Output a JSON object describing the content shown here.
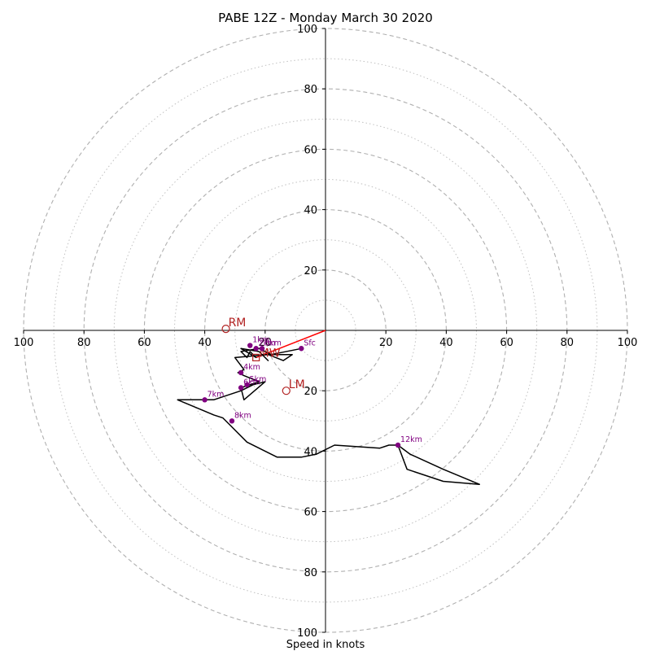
{
  "chart_data": {
    "type": "hodograph",
    "title": "PABE 12Z - Monday March 30 2020",
    "xlabel": "Speed in knots",
    "axis_range": [
      -100,
      100
    ],
    "ring_labels": [
      "20",
      "40",
      "60",
      "80",
      "100"
    ],
    "x_tick_labels": [
      "100",
      "80",
      "60",
      "40",
      "20",
      "20",
      "40",
      "60",
      "80",
      "100"
    ],
    "y_tick_labels": [
      "100",
      "80",
      "60",
      "40",
      "20",
      "20",
      "40",
      "60",
      "80",
      "100"
    ],
    "major_rings": [
      20,
      40,
      60,
      80,
      100
    ],
    "minor_rings": [
      10,
      30,
      50,
      70,
      90
    ],
    "colors": {
      "grid": "#b0b0b0",
      "trace": "#000000",
      "markers": "#800080",
      "motion": "#b22222",
      "shear": "#ff0000"
    },
    "trace": [
      [
        -8,
        -6
      ],
      [
        -18,
        -8
      ],
      [
        -22,
        -6
      ],
      [
        -28,
        -7
      ],
      [
        -26,
        -9
      ],
      [
        -25,
        -7
      ],
      [
        -23,
        -9
      ],
      [
        -28,
        -6
      ],
      [
        -22,
        -7
      ],
      [
        -19,
        -10
      ],
      [
        -21,
        -8
      ],
      [
        -11,
        -8
      ],
      [
        -14,
        -10
      ],
      [
        -19,
        -8
      ],
      [
        -30,
        -9
      ],
      [
        -27,
        -13
      ],
      [
        -29,
        -14
      ],
      [
        -27,
        -15
      ],
      [
        -22,
        -17
      ],
      [
        -28,
        -19
      ],
      [
        -27,
        -23
      ],
      [
        -20,
        -17
      ],
      [
        -24,
        -18
      ],
      [
        -28,
        -20
      ],
      [
        -34,
        -22
      ],
      [
        -37,
        -23
      ],
      [
        -49,
        -23
      ],
      [
        -37,
        -28
      ],
      [
        -34,
        -29
      ],
      [
        -32,
        -31
      ],
      [
        -26,
        -37
      ],
      [
        -20,
        -40
      ],
      [
        -16,
        -42
      ],
      [
        -8,
        -42
      ],
      [
        -3,
        -41
      ],
      [
        3,
        -38
      ],
      [
        18,
        -39
      ],
      [
        21,
        -38
      ],
      [
        24,
        -38
      ],
      [
        28,
        -41
      ],
      [
        39,
        -46
      ],
      [
        51,
        -51
      ],
      [
        39,
        -50
      ],
      [
        27,
        -46
      ],
      [
        24,
        -38
      ]
    ],
    "height_markers": [
      {
        "label": "Sfc",
        "u": -8,
        "v": -6
      },
      {
        "label": "1km",
        "u": -25,
        "v": -5
      },
      {
        "label": "2km",
        "u": -23,
        "v": -6
      },
      {
        "label": "3km",
        "u": -21,
        "v": -6
      },
      {
        "label": "4km",
        "u": -28,
        "v": -14
      },
      {
        "label": "5km",
        "u": -26,
        "v": -18
      },
      {
        "label": "6km",
        "u": -28,
        "v": -19
      },
      {
        "label": "7km",
        "u": -40,
        "v": -23
      },
      {
        "label": "8km",
        "u": -31,
        "v": -30
      },
      {
        "label": "12km",
        "u": 24,
        "v": -38
      }
    ],
    "storm_motion": [
      {
        "label": "RM",
        "u": -33,
        "v": 0.5
      },
      {
        "label": "LM",
        "u": -13,
        "v": -20
      },
      {
        "label": "MW",
        "u": -23,
        "v": -9
      }
    ],
    "shear_vector": {
      "from": [
        0,
        0
      ],
      "to": [
        -23,
        -9
      ]
    }
  }
}
